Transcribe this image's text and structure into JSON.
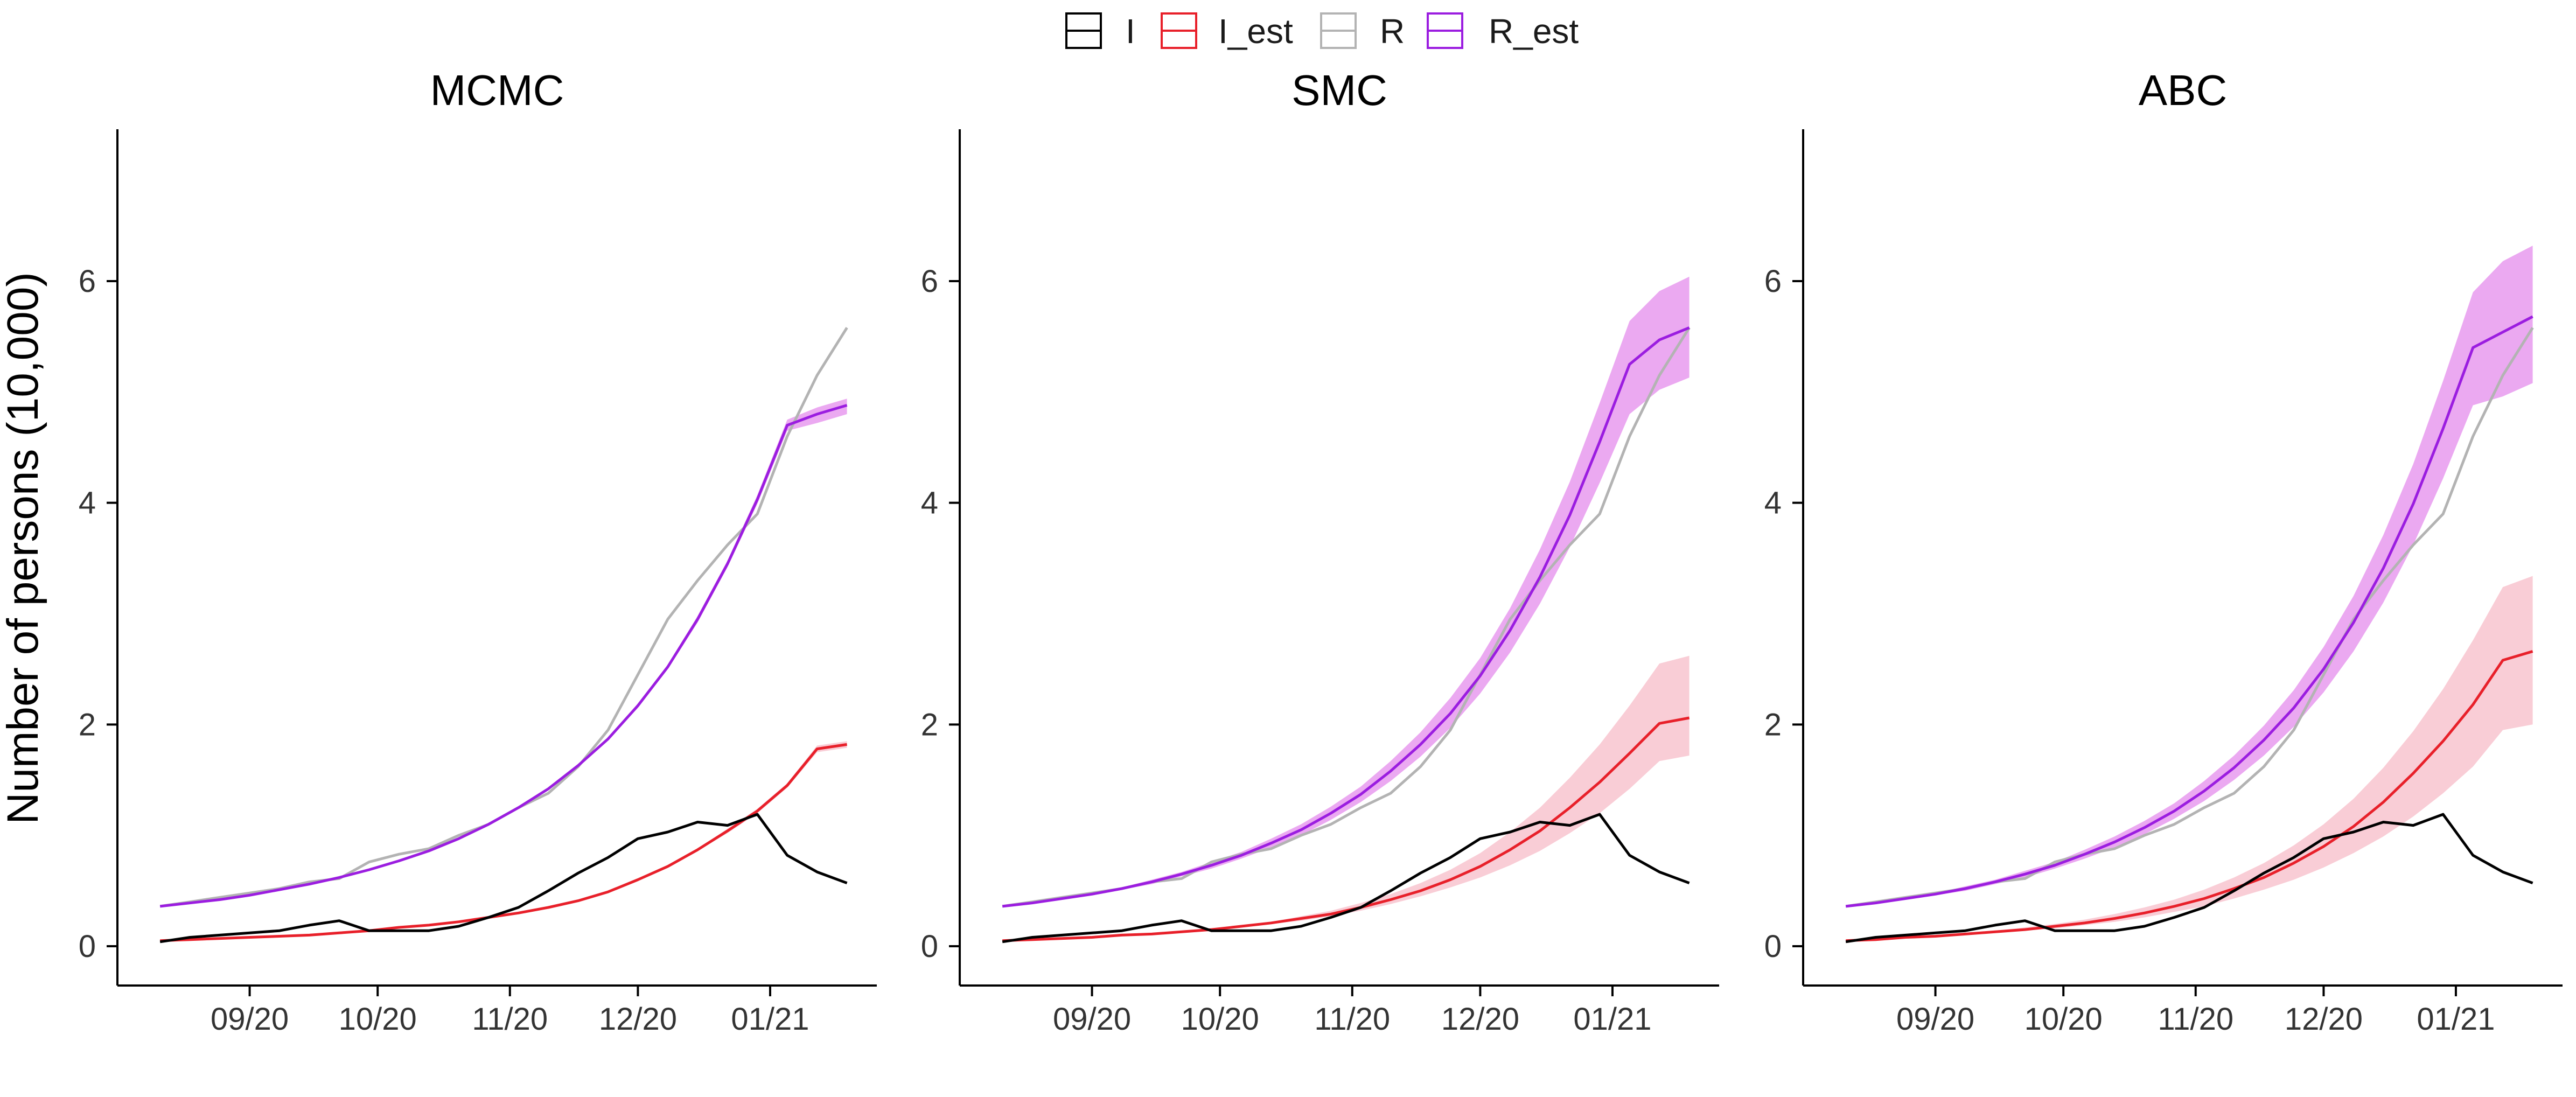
{
  "legend": {
    "items": [
      {
        "key": "I",
        "label": "I",
        "color": "#000000"
      },
      {
        "key": "I_est",
        "label": "I_est",
        "color": "#e8202a"
      },
      {
        "key": "R",
        "label": "R",
        "color": "#b3b3b3"
      },
      {
        "key": "R_est",
        "label": "R_est",
        "color": "#9b1de0"
      }
    ]
  },
  "chart_data": {
    "type": "line",
    "ylabel": "Number of persons (10,000)",
    "xlabel": "",
    "ylim": [
      -0.35,
      7.3
    ],
    "yticks": [
      0,
      2,
      4,
      6
    ],
    "x_range": [
      "2020-08-01",
      "2021-01-26"
    ],
    "xticks": [
      {
        "label": "09/20",
        "date": "2020-09-01"
      },
      {
        "label": "10/20",
        "date": "2020-10-01"
      },
      {
        "label": "11/20",
        "date": "2020-11-01"
      },
      {
        "label": "12/20",
        "date": "2020-12-01"
      },
      {
        "label": "01/21",
        "date": "2021-01-01"
      }
    ],
    "band_colors": {
      "I_est": "#f9cdd6",
      "R_est": "#eba9f1"
    },
    "observed": {
      "dates": [
        "2020-08-11",
        "2020-08-18",
        "2020-08-25",
        "2020-09-01",
        "2020-09-08",
        "2020-09-15",
        "2020-09-22",
        "2020-09-29",
        "2020-10-06",
        "2020-10-13",
        "2020-10-20",
        "2020-10-27",
        "2020-11-03",
        "2020-11-10",
        "2020-11-17",
        "2020-11-24",
        "2020-12-01",
        "2020-12-08",
        "2020-12-15",
        "2020-12-22",
        "2020-12-29",
        "2021-01-05",
        "2021-01-12",
        "2021-01-19"
      ],
      "I": [
        0.04,
        0.08,
        0.1,
        0.12,
        0.14,
        0.19,
        0.23,
        0.14,
        0.14,
        0.14,
        0.18,
        0.26,
        0.35,
        0.5,
        0.66,
        0.8,
        0.97,
        1.03,
        1.12,
        1.09,
        1.19,
        0.82,
        0.67,
        0.57
      ],
      "R": [
        0.36,
        0.4,
        0.44,
        0.48,
        0.52,
        0.58,
        0.61,
        0.76,
        0.83,
        0.88,
        1.0,
        1.1,
        1.25,
        1.38,
        1.62,
        1.95,
        2.45,
        2.95,
        3.3,
        3.62,
        3.9,
        4.6,
        5.15,
        5.58
      ]
    },
    "panels": [
      {
        "title": "MCMC",
        "dates": [
          "2020-08-11",
          "2020-08-18",
          "2020-08-25",
          "2020-09-01",
          "2020-09-08",
          "2020-09-15",
          "2020-09-22",
          "2020-09-29",
          "2020-10-06",
          "2020-10-13",
          "2020-10-20",
          "2020-10-27",
          "2020-11-03",
          "2020-11-10",
          "2020-11-17",
          "2020-11-24",
          "2020-12-01",
          "2020-12-08",
          "2020-12-15",
          "2020-12-22",
          "2020-12-29",
          "2021-01-05",
          "2021-01-12",
          "2021-01-19"
        ],
        "I_est": [
          0.05,
          0.06,
          0.07,
          0.08,
          0.09,
          0.1,
          0.12,
          0.14,
          0.17,
          0.19,
          0.22,
          0.26,
          0.3,
          0.35,
          0.41,
          0.49,
          0.6,
          0.72,
          0.87,
          1.04,
          1.22,
          1.45,
          1.78,
          1.82
        ],
        "I_lo": [
          0.05,
          0.06,
          0.07,
          0.08,
          0.09,
          0.1,
          0.12,
          0.14,
          0.17,
          0.19,
          0.22,
          0.26,
          0.3,
          0.35,
          0.41,
          0.48,
          0.59,
          0.71,
          0.86,
          1.02,
          1.2,
          1.43,
          1.75,
          1.79
        ],
        "I_hi": [
          0.05,
          0.06,
          0.07,
          0.08,
          0.09,
          0.1,
          0.12,
          0.14,
          0.17,
          0.19,
          0.22,
          0.26,
          0.3,
          0.35,
          0.42,
          0.5,
          0.61,
          0.73,
          0.88,
          1.06,
          1.24,
          1.47,
          1.81,
          1.85
        ],
        "R_est": [
          0.36,
          0.39,
          0.42,
          0.46,
          0.51,
          0.56,
          0.62,
          0.69,
          0.77,
          0.86,
          0.97,
          1.1,
          1.25,
          1.42,
          1.63,
          1.87,
          2.17,
          2.52,
          2.95,
          3.45,
          4.03,
          4.7,
          4.8,
          4.88
        ],
        "R_lo": [
          0.36,
          0.39,
          0.42,
          0.46,
          0.51,
          0.56,
          0.62,
          0.69,
          0.77,
          0.86,
          0.96,
          1.09,
          1.24,
          1.41,
          1.62,
          1.86,
          2.15,
          2.5,
          2.92,
          3.42,
          3.99,
          4.65,
          4.72,
          4.8
        ],
        "R_hi": [
          0.36,
          0.39,
          0.42,
          0.46,
          0.51,
          0.56,
          0.62,
          0.69,
          0.77,
          0.86,
          0.98,
          1.11,
          1.26,
          1.43,
          1.64,
          1.88,
          2.19,
          2.54,
          2.98,
          3.48,
          4.07,
          4.75,
          4.86,
          4.94
        ]
      },
      {
        "title": "SMC",
        "dates": [
          "2020-08-11",
          "2020-08-18",
          "2020-08-25",
          "2020-09-01",
          "2020-09-08",
          "2020-09-15",
          "2020-09-22",
          "2020-09-29",
          "2020-10-06",
          "2020-10-13",
          "2020-10-20",
          "2020-10-27",
          "2020-11-03",
          "2020-11-10",
          "2020-11-17",
          "2020-11-24",
          "2020-12-01",
          "2020-12-08",
          "2020-12-15",
          "2020-12-22",
          "2020-12-29",
          "2021-01-05",
          "2021-01-12",
          "2021-01-19"
        ],
        "I_est": [
          0.05,
          0.06,
          0.07,
          0.08,
          0.1,
          0.11,
          0.13,
          0.15,
          0.18,
          0.21,
          0.25,
          0.29,
          0.35,
          0.42,
          0.5,
          0.6,
          0.72,
          0.87,
          1.04,
          1.25,
          1.48,
          1.74,
          2.01,
          2.06
        ],
        "I_lo": [
          0.05,
          0.06,
          0.07,
          0.08,
          0.09,
          0.1,
          0.12,
          0.14,
          0.17,
          0.2,
          0.23,
          0.27,
          0.32,
          0.38,
          0.45,
          0.53,
          0.62,
          0.73,
          0.86,
          1.02,
          1.2,
          1.42,
          1.67,
          1.72
        ],
        "I_hi": [
          0.05,
          0.06,
          0.07,
          0.08,
          0.1,
          0.12,
          0.14,
          0.16,
          0.19,
          0.22,
          0.27,
          0.32,
          0.39,
          0.47,
          0.57,
          0.69,
          0.84,
          1.03,
          1.25,
          1.52,
          1.82,
          2.17,
          2.55,
          2.62
        ],
        "R_est": [
          0.36,
          0.39,
          0.43,
          0.47,
          0.52,
          0.58,
          0.65,
          0.73,
          0.82,
          0.93,
          1.05,
          1.2,
          1.37,
          1.58,
          1.82,
          2.1,
          2.44,
          2.85,
          3.33,
          3.89,
          4.55,
          5.25,
          5.47,
          5.58
        ],
        "R_lo": [
          0.36,
          0.38,
          0.42,
          0.46,
          0.51,
          0.56,
          0.63,
          0.7,
          0.79,
          0.89,
          1.0,
          1.14,
          1.3,
          1.49,
          1.71,
          1.97,
          2.28,
          2.65,
          3.09,
          3.6,
          4.18,
          4.8,
          5.02,
          5.13
        ],
        "R_hi": [
          0.36,
          0.4,
          0.44,
          0.48,
          0.53,
          0.6,
          0.67,
          0.76,
          0.85,
          0.97,
          1.1,
          1.26,
          1.44,
          1.67,
          1.93,
          2.24,
          2.6,
          3.05,
          3.58,
          4.19,
          4.9,
          5.64,
          5.91,
          6.04
        ]
      },
      {
        "title": "ABC",
        "dates": [
          "2020-08-11",
          "2020-08-18",
          "2020-08-25",
          "2020-09-01",
          "2020-09-08",
          "2020-09-15",
          "2020-09-22",
          "2020-09-29",
          "2020-10-06",
          "2020-10-13",
          "2020-10-20",
          "2020-10-27",
          "2020-11-03",
          "2020-11-10",
          "2020-11-17",
          "2020-11-24",
          "2020-12-01",
          "2020-12-08",
          "2020-12-15",
          "2020-12-22",
          "2020-12-29",
          "2021-01-05",
          "2021-01-12",
          "2021-01-19"
        ],
        "I_est": [
          0.05,
          0.06,
          0.08,
          0.09,
          0.11,
          0.13,
          0.15,
          0.18,
          0.21,
          0.25,
          0.3,
          0.36,
          0.43,
          0.52,
          0.62,
          0.75,
          0.9,
          1.08,
          1.3,
          1.56,
          1.85,
          2.18,
          2.58,
          2.66
        ],
        "I_lo": [
          0.05,
          0.06,
          0.07,
          0.08,
          0.1,
          0.12,
          0.14,
          0.16,
          0.19,
          0.22,
          0.26,
          0.31,
          0.36,
          0.43,
          0.51,
          0.6,
          0.71,
          0.84,
          0.99,
          1.17,
          1.38,
          1.62,
          1.95,
          2.0
        ],
        "I_hi": [
          0.05,
          0.06,
          0.08,
          0.1,
          0.12,
          0.14,
          0.17,
          0.2,
          0.24,
          0.29,
          0.35,
          0.42,
          0.51,
          0.62,
          0.75,
          0.91,
          1.1,
          1.33,
          1.61,
          1.94,
          2.32,
          2.76,
          3.24,
          3.34
        ],
        "R_est": [
          0.36,
          0.39,
          0.43,
          0.47,
          0.52,
          0.58,
          0.65,
          0.73,
          0.83,
          0.94,
          1.07,
          1.22,
          1.4,
          1.61,
          1.86,
          2.15,
          2.5,
          2.92,
          3.41,
          3.99,
          4.67,
          5.4,
          5.54,
          5.68
        ],
        "R_lo": [
          0.36,
          0.38,
          0.42,
          0.46,
          0.5,
          0.56,
          0.62,
          0.7,
          0.79,
          0.89,
          1.01,
          1.15,
          1.31,
          1.5,
          1.72,
          1.98,
          2.29,
          2.66,
          3.1,
          3.62,
          4.22,
          4.88,
          4.96,
          5.08
        ],
        "R_hi": [
          0.36,
          0.4,
          0.44,
          0.48,
          0.54,
          0.6,
          0.68,
          0.76,
          0.87,
          0.99,
          1.13,
          1.29,
          1.49,
          1.72,
          1.99,
          2.31,
          2.7,
          3.16,
          3.71,
          4.35,
          5.1,
          5.9,
          6.18,
          6.32
        ]
      }
    ]
  }
}
